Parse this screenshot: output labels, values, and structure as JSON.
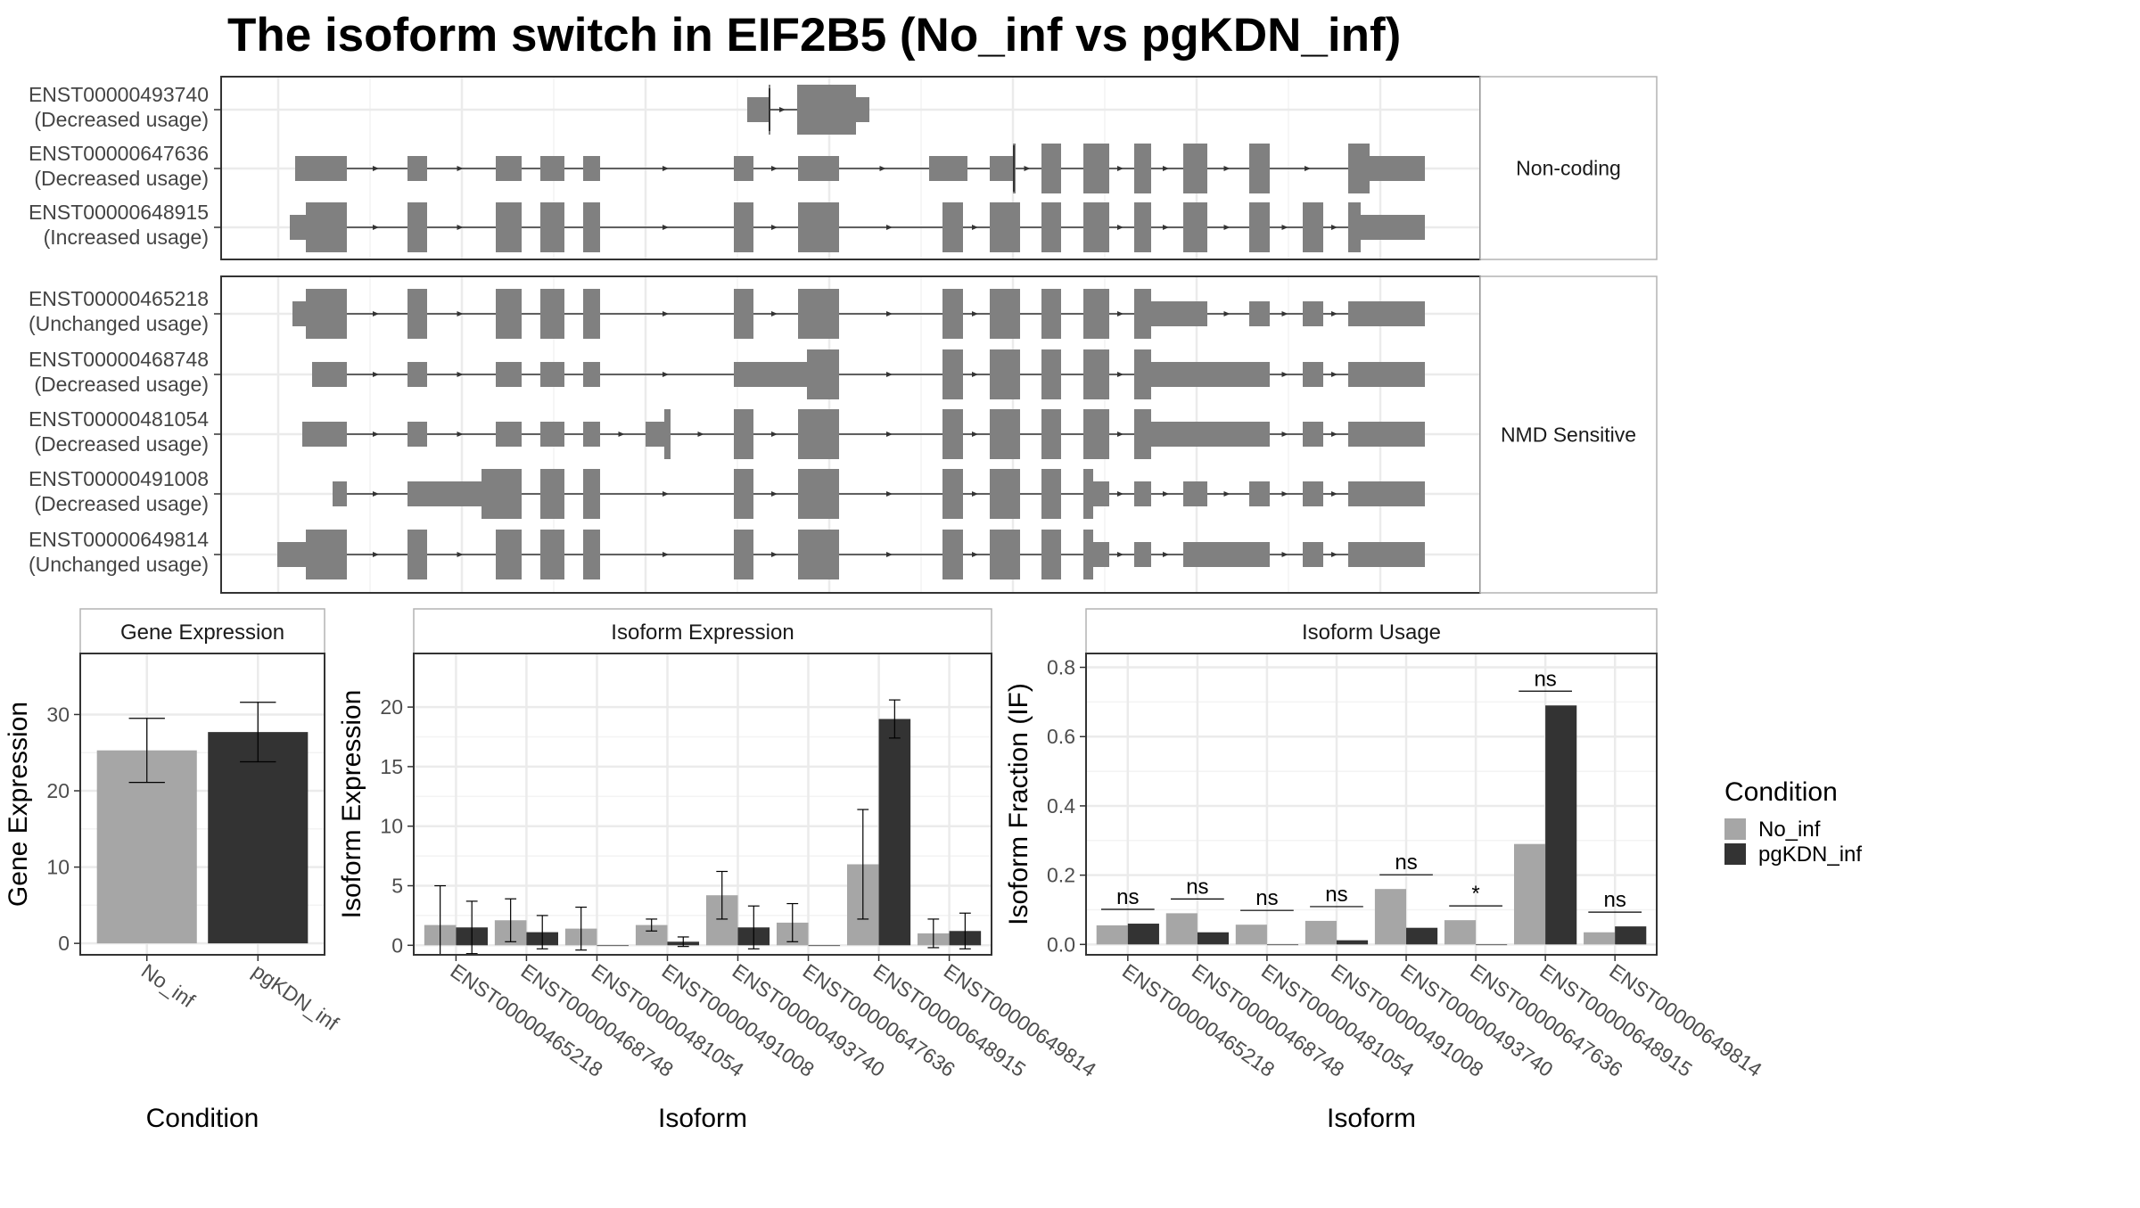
{
  "title": "The isoform switch in EIF2B5 (No_inf vs pgKDN_inf)",
  "colors": {
    "no_inf": "#a6a6a6",
    "pgkdn_inf": "#333333",
    "exon": "#808080",
    "grid": "#ebebeb",
    "panel_border": "#333333",
    "strip_border": "#b3b3b3"
  },
  "chart_data": [
    {
      "type": "gene-structure",
      "groups": [
        {
          "label": "Non-coding",
          "transcripts": [
            {
              "id": "ENST00000493740",
              "usage": "(Decreased usage)"
            },
            {
              "id": "ENST00000647636",
              "usage": "(Decreased usage)"
            },
            {
              "id": "ENST00000648915",
              "usage": "(Increased usage)"
            }
          ]
        },
        {
          "label": "NMD Sensitive",
          "transcripts": [
            {
              "id": "ENST00000465218",
              "usage": "(Unchanged usage)"
            },
            {
              "id": "ENST00000468748",
              "usage": "(Decreased usage)"
            },
            {
              "id": "ENST00000481054",
              "usage": "(Decreased usage)"
            },
            {
              "id": "ENST00000491008",
              "usage": "(Decreased usage)"
            },
            {
              "id": "ENST00000649814",
              "usage": "(Unchanged usage)"
            }
          ]
        }
      ]
    },
    {
      "type": "bar",
      "title": "Gene Expression",
      "xlabel": "Condition",
      "ylabel": "Gene Expression",
      "categories": [
        "No_inf",
        "pgKDN_inf"
      ],
      "values": [
        25.3,
        27.7
      ],
      "error": [
        4.2,
        3.9
      ],
      "ylim": [
        -1.5,
        38
      ],
      "yticks": [
        0,
        10,
        20,
        30
      ]
    },
    {
      "type": "bar",
      "title": "Isoform Expression",
      "xlabel": "Isoform",
      "ylabel": "Isoform Expression",
      "categories": [
        "ENST00000465218",
        "ENST00000468748",
        "ENST00000481054",
        "ENST00000491008",
        "ENST00000493740",
        "ENST00000647636",
        "ENST00000648915",
        "ENST00000649814"
      ],
      "series": [
        {
          "name": "No_inf",
          "values": [
            1.7,
            2.1,
            1.4,
            1.7,
            4.2,
            1.9,
            6.8,
            1.0
          ],
          "error": [
            3.3,
            1.8,
            1.8,
            0.5,
            2.0,
            1.6,
            4.6,
            1.2
          ]
        },
        {
          "name": "pgKDN_inf",
          "values": [
            1.5,
            1.1,
            0,
            0.3,
            1.5,
            0,
            19.0,
            1.2
          ],
          "error": [
            2.2,
            1.4,
            0,
            0.4,
            1.8,
            0,
            1.6,
            1.5
          ]
        }
      ],
      "ylim": [
        -0.8,
        24.5
      ],
      "yticks": [
        0,
        5,
        10,
        15,
        20
      ]
    },
    {
      "type": "bar",
      "title": "Isoform Usage",
      "xlabel": "Isoform",
      "ylabel": "Isoform Fraction (IF)",
      "categories": [
        "ENST00000465218",
        "ENST00000468748",
        "ENST00000481054",
        "ENST00000491008",
        "ENST00000493740",
        "ENST00000647636",
        "ENST00000648915",
        "ENST00000649814"
      ],
      "series": [
        {
          "name": "No_inf",
          "values": [
            0.055,
            0.09,
            0.057,
            0.068,
            0.16,
            0.07,
            0.29,
            0.035
          ]
        },
        {
          "name": "pgKDN_inf",
          "values": [
            0.06,
            0.035,
            0,
            0.012,
            0.048,
            0,
            0.69,
            0.052
          ]
        }
      ],
      "significance": [
        "ns",
        "ns",
        "ns",
        "ns",
        "ns",
        "*",
        "ns",
        "ns"
      ],
      "ylim": [
        -0.03,
        0.84
      ],
      "yticks": [
        0.0,
        0.2,
        0.4,
        0.6,
        0.8
      ],
      "ytick_labels": [
        "0.0",
        "0.2",
        "0.4",
        "0.6",
        "0.8"
      ]
    }
  ],
  "legend": {
    "title": "Condition",
    "items": [
      {
        "label": "No_inf",
        "color": "#a6a6a6"
      },
      {
        "label": "pgKDN_inf",
        "color": "#333333"
      }
    ]
  }
}
